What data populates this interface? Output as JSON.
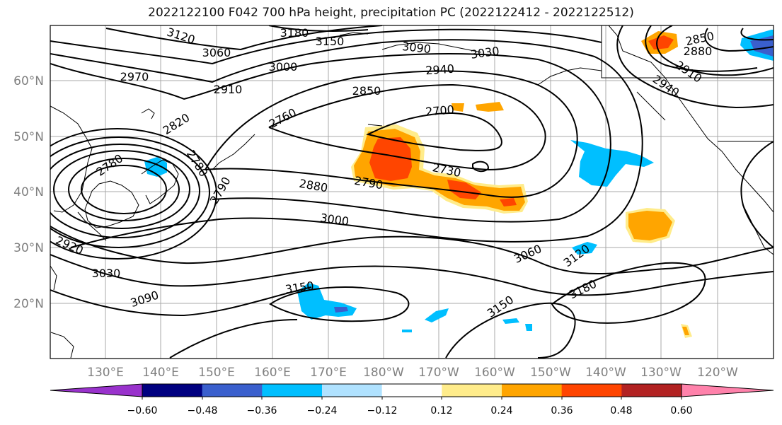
{
  "title": "2022122100 F042 700 hPa height, precipitation PC (2022122412 - 2022122512)",
  "lat_labels": [
    "60°N",
    "50°N",
    "40°N",
    "30°N",
    "20°N"
  ],
  "lon_labels": [
    "130°E",
    "140°E",
    "150°E",
    "160°E",
    "170°E",
    "180°W",
    "170°W",
    "160°W",
    "150°W",
    "140°W",
    "130°W",
    "120°W"
  ],
  "contour_labels": [
    "3120",
    "3180",
    "3150",
    "3090",
    "3030",
    "3060",
    "3000",
    "2940",
    "2970",
    "2910",
    "2850",
    "2700",
    "2760",
    "2820",
    "2780",
    "2780",
    "2730",
    "2790",
    "2790",
    "2880",
    "3000",
    "3060",
    "3120",
    "2920",
    "3030",
    "3090",
    "3150",
    "3150",
    "3180",
    "2850",
    "2880",
    "2910",
    "2940"
  ],
  "colorbar": {
    "ticks": [
      "−0.60",
      "−0.48",
      "−0.36",
      "−0.24",
      "−0.12",
      "0.12",
      "0.24",
      "0.36",
      "0.48",
      "0.60"
    ],
    "colors": [
      "#9932CC",
      "#000080",
      "#3A5FCD",
      "#00BFFF",
      "#B0E2FF",
      "#FFFFFF",
      "#FFEC8B",
      "#FFA500",
      "#FF4500",
      "#B22222",
      "#FF82AB"
    ]
  },
  "fill_colors": {
    "light_blue": "#B0E2FF",
    "blue": "#00BFFF",
    "mid_blue": "#3A5FCD",
    "navy": "#000080",
    "yellow": "#FFEC8B",
    "orange": "#FFA500",
    "red_orange": "#FF4500",
    "firebrick": "#B22222"
  }
}
